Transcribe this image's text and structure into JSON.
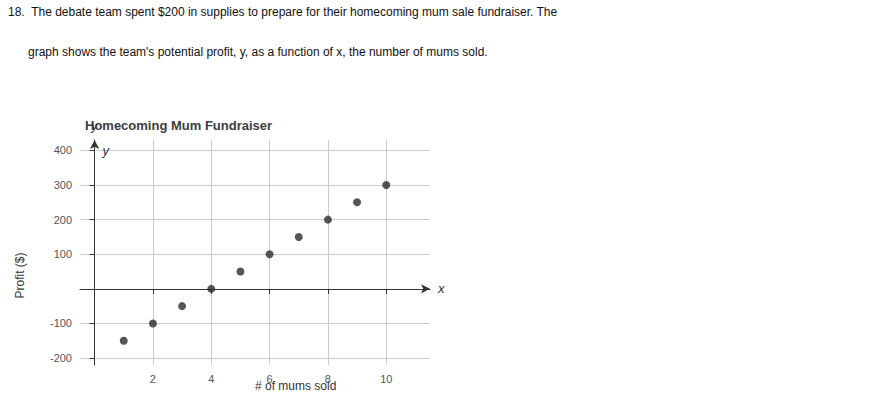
{
  "chart_data": {
    "type": "scatter",
    "title": "Homecoming Mum Fundraiser",
    "xlabel": "# of mums sold",
    "ylabel": "Profit ($)",
    "x_symbol": "x",
    "y_symbol": "y",
    "annotations": [
      "18.  The debate team spent $200 in supplies to prepare for their homecoming mum sale fundraiser. The",
      "      graph shows the team's potential profit, y, as a function of x, the number of mums sold."
    ],
    "x": [
      1,
      2,
      3,
      4,
      5,
      6,
      7,
      8,
      9,
      10
    ],
    "values": [
      -150,
      -100,
      -50,
      0,
      50,
      100,
      150,
      200,
      250,
      300
    ],
    "color": "#2a2a2a",
    "xlim": [
      -0.5,
      11.5
    ],
    "ylim": [
      -220,
      430
    ],
    "xticks": [
      2,
      4,
      6,
      8,
      10
    ],
    "yticks": [
      -200,
      -100,
      100,
      200,
      300,
      400
    ],
    "grid": true
  }
}
